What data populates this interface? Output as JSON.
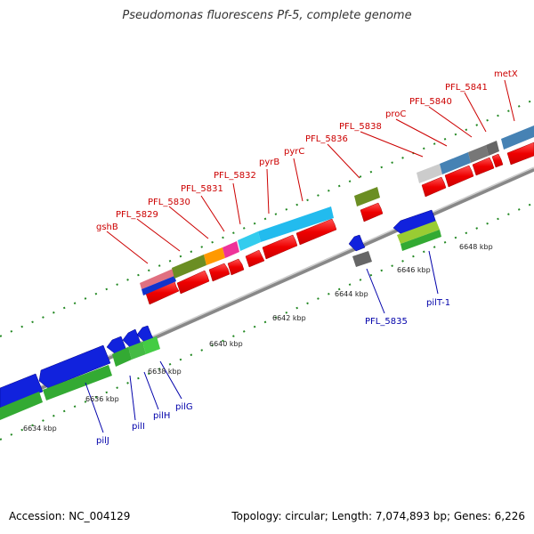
{
  "title": "Pseudomonas fluorescens Pf-5, complete genome",
  "accession": "Accession: NC_004129",
  "summary": "Topology: circular; Length: 7,074,893 bp; Genes: 6,226",
  "ticks": [
    "6634 kbp",
    "6636 kbp",
    "6638 kbp",
    "6640 kbp",
    "6642 kbp",
    "6644 kbp",
    "6646 kbp",
    "6648 kbp"
  ],
  "gene_labels_red": [
    "gshB",
    "PFL_5829",
    "PFL_5830",
    "PFL_5831",
    "PFL_5832",
    "pyrB",
    "pyrC",
    "PFL_5836",
    "PFL_5838",
    "proC",
    "PFL_5840",
    "PFL_5841",
    "metX"
  ],
  "gene_labels_blue": [
    "pilJ",
    "pilI",
    "pilH",
    "pilG",
    "PFL_5835",
    "pilT-1"
  ],
  "colors": {
    "backbone": "#888888",
    "forward_gene": "#ee1111",
    "label_red": "#cc0000",
    "label_blue": "#0000aa",
    "tick": "#228822",
    "reverse_blue": "#1122dd",
    "reverse_green": "#33aa33"
  }
}
